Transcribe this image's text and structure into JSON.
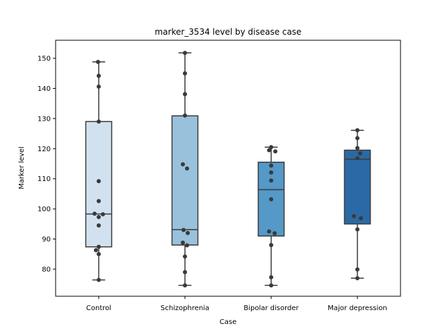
{
  "chart_data": {
    "type": "box",
    "title": "marker_3534 level by disease case",
    "xlabel": "Case",
    "ylabel": "Marker level",
    "categories": [
      "Control",
      "Schizophrenia",
      "Bipolar disorder",
      "Major depression"
    ],
    "ylim": [
      71,
      156
    ],
    "yticks": [
      80,
      90,
      100,
      110,
      120,
      130,
      140,
      150
    ],
    "grid": false,
    "box_colors": [
      "#d2e1f0",
      "#99c1dc",
      "#5499c7",
      "#2b69a5"
    ],
    "outline_color": "#3a3a3a",
    "point_color": "#3a3a3a",
    "boxes": [
      {
        "category": "Control",
        "whisker_low": 76.4,
        "q1": 87.4,
        "median": 98.3,
        "q3": 129.0,
        "whisker_high": 148.8
      },
      {
        "category": "Schizophrenia",
        "whisker_low": 74.6,
        "q1": 88.0,
        "median": 93.1,
        "q3": 130.9,
        "whisker_high": 151.8
      },
      {
        "category": "Bipolar disorder",
        "whisker_low": 74.6,
        "q1": 91.0,
        "median": 106.4,
        "q3": 115.5,
        "whisker_high": 120.5
      },
      {
        "category": "Major depression",
        "whisker_low": 77.0,
        "q1": 95.0,
        "median": 116.5,
        "q3": 119.5,
        "whisker_high": 126.1
      }
    ],
    "points": [
      {
        "category": "Control",
        "values": [
          148.8,
          144.2,
          140.6,
          129.0,
          109.2,
          102.6,
          98.4,
          98.2,
          97.3,
          94.5,
          87.4,
          86.3,
          85.0,
          76.4
        ]
      },
      {
        "category": "Schizophrenia",
        "values": [
          151.8,
          145.0,
          138.1,
          131.0,
          114.8,
          113.4,
          93.0,
          92.0,
          88.8,
          87.9,
          84.2,
          79.0,
          74.6
        ]
      },
      {
        "category": "Bipolar disorder",
        "values": [
          120.5,
          119.5,
          119.1,
          114.4,
          112.1,
          109.4,
          103.2,
          92.5,
          91.9,
          88.0,
          77.3,
          74.6
        ]
      },
      {
        "category": "Major depression",
        "values": [
          126.1,
          123.5,
          120.2,
          118.4,
          116.8,
          97.6,
          96.9,
          93.2,
          79.9,
          77.0
        ]
      }
    ],
    "point_offsets": [
      [
        -1,
        0,
        0,
        0,
        0,
        0,
        -6,
        6,
        0,
        0,
        0,
        -4,
        0,
        0
      ],
      [
        0,
        0,
        0,
        0,
        -3,
        3,
        -2,
        4,
        -3,
        3,
        0,
        0,
        0
      ],
      [
        0,
        -3,
        6,
        0,
        0,
        0,
        0,
        -3,
        5,
        0,
        0,
        0
      ],
      [
        0,
        0,
        0,
        4,
        0,
        -5,
        5,
        0,
        0,
        0
      ]
    ]
  }
}
